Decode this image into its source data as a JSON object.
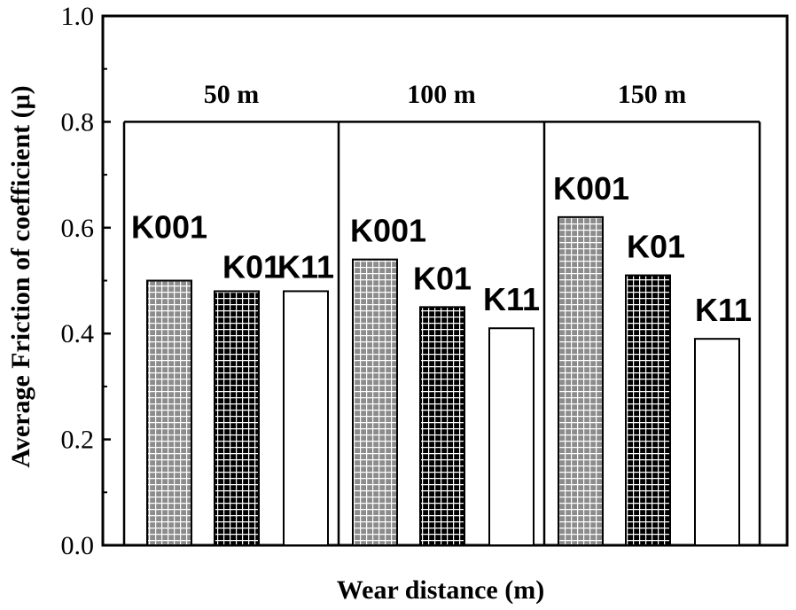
{
  "chart_data": {
    "type": "bar",
    "title": "",
    "xlabel": "Wear distance (m)",
    "ylabel": "Average Friction of coefficient (μ)",
    "ylim": [
      0,
      1.0
    ],
    "yticks": [
      "0.0",
      "0.2",
      "0.4",
      "0.6",
      "0.8",
      "1.0"
    ],
    "grid": false,
    "categories": [
      "50 m",
      "100 m",
      "150 m"
    ],
    "series": [
      {
        "name": "K001",
        "pattern": "gray-grid",
        "values": [
          0.5,
          0.54,
          0.62
        ]
      },
      {
        "name": "K01",
        "pattern": "black-grid",
        "values": [
          0.48,
          0.45,
          0.51
        ]
      },
      {
        "name": "K11",
        "pattern": "white",
        "values": [
          0.48,
          0.41,
          0.39
        ]
      }
    ],
    "colors": {
      "gray_fill": "#8c8c8c",
      "black_fill": "#000000",
      "grid_line": "#ffffff",
      "outline": "#000000"
    }
  }
}
